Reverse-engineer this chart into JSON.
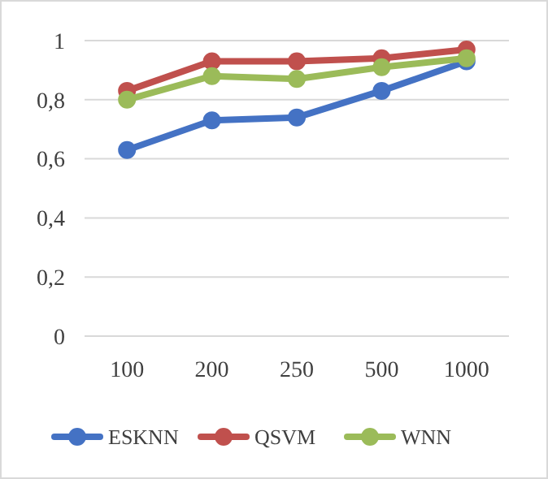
{
  "chart_data": {
    "type": "line",
    "categories": [
      "100",
      "200",
      "250",
      "500",
      "1000"
    ],
    "series": [
      {
        "name": "ESKNN",
        "color": "#4472c4",
        "values": [
          0.63,
          0.73,
          0.74,
          0.83,
          0.93
        ]
      },
      {
        "name": "QSVM",
        "color": "#c0504d",
        "values": [
          0.83,
          0.93,
          0.93,
          0.94,
          0.97
        ]
      },
      {
        "name": "WNN",
        "color": "#9bbb59",
        "values": [
          0.8,
          0.88,
          0.87,
          0.91,
          0.94
        ]
      }
    ],
    "ylim": [
      0,
      1
    ],
    "yticks": [
      {
        "value": 0,
        "label": "0"
      },
      {
        "value": 0.2,
        "label": "0,2"
      },
      {
        "value": 0.4,
        "label": "0,4"
      },
      {
        "value": 0.6,
        "label": "0,6"
      },
      {
        "value": 0.8,
        "label": "0,8"
      },
      {
        "value": 1,
        "label": "1"
      }
    ],
    "grid": "y",
    "legend": "bottom",
    "marker": "circle",
    "line_style": "solid"
  }
}
